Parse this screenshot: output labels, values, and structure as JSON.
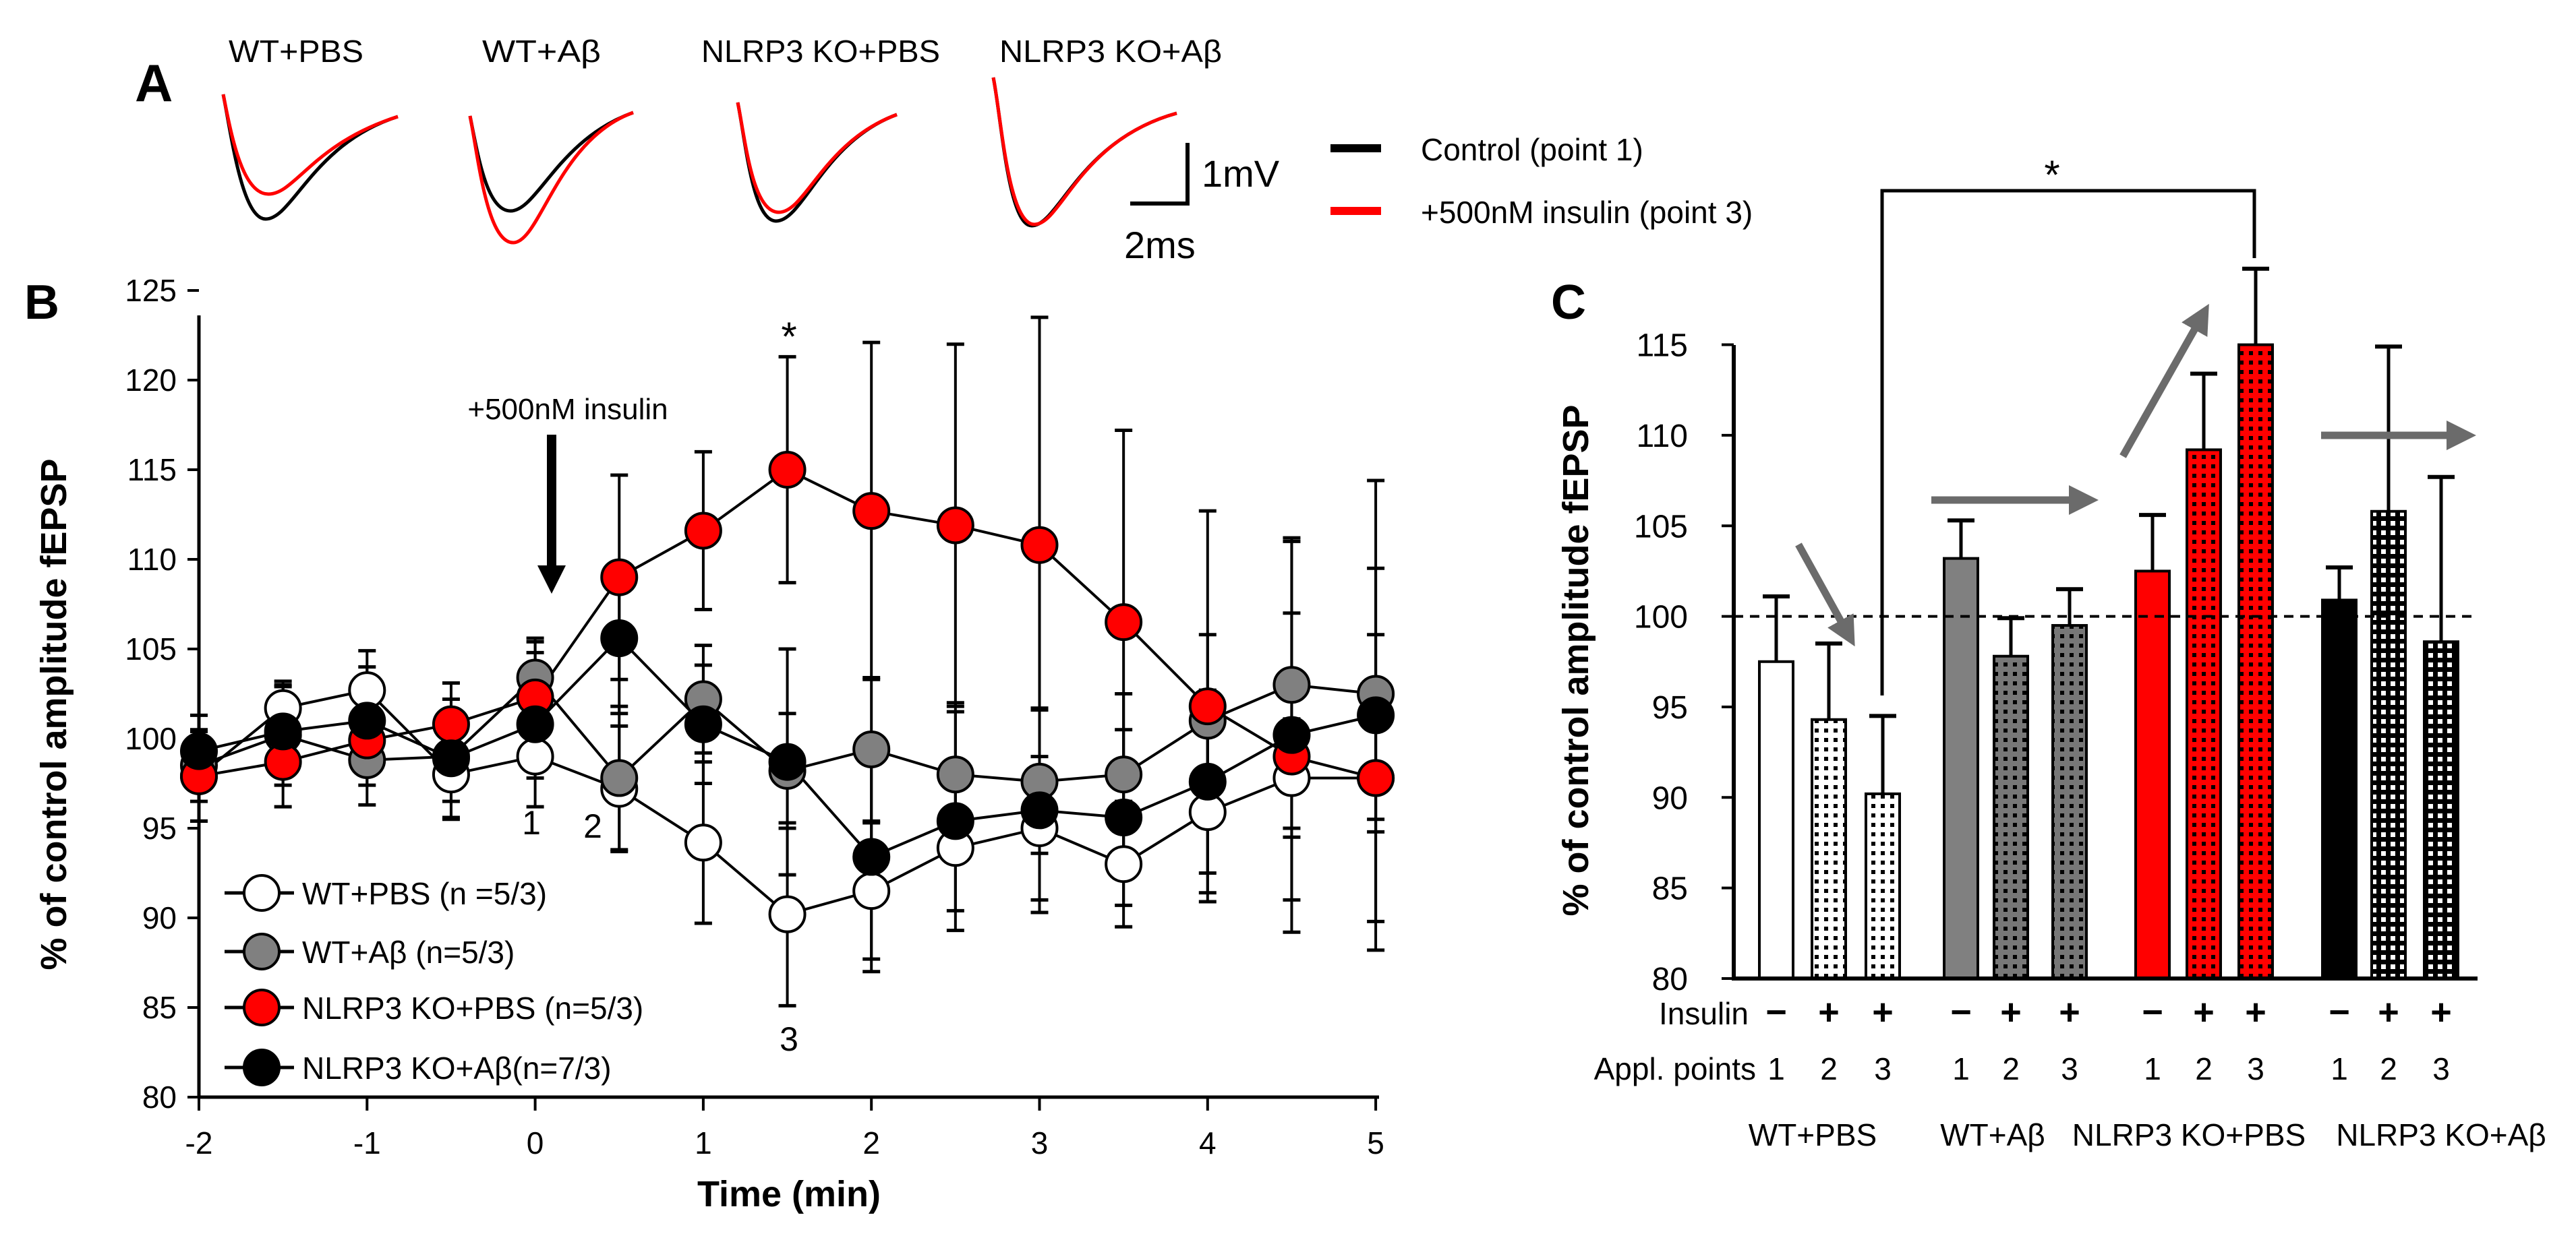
{
  "panel_labels": {
    "a": "A",
    "b": "B",
    "c": "C"
  },
  "panel_a": {
    "group_labels": [
      "WT+PBS",
      "WT+Aβ",
      "NLRP3 KO+PBS",
      "NLRP3 KO+Aβ"
    ],
    "scale_bar": {
      "voltage": "1mV",
      "time": "2ms"
    },
    "legend": [
      {
        "label": "Control (point 1)",
        "color": "#000000"
      },
      {
        "label": "+500nM insulin (point 3)",
        "color": "#ff0000"
      }
    ]
  },
  "chart_data": [
    {
      "type": "line",
      "panel": "B",
      "xlabel": "Time (min)",
      "ylabel": "% of control amplitude fEPSP",
      "xlim": [
        -2,
        5
      ],
      "ylim": [
        80,
        125
      ],
      "x_ticks": [
        "-2",
        "-1",
        "0",
        "1",
        "2",
        "3",
        "4",
        "5"
      ],
      "y_ticks": [
        "80",
        "85",
        "90",
        "95",
        "100",
        "105",
        "110",
        "115",
        "120",
        "125"
      ],
      "x": [
        -2,
        -1.5,
        -1,
        -0.5,
        0,
        0.5,
        1,
        1.5,
        2,
        2.5,
        3,
        3.5,
        4,
        4.5,
        5
      ],
      "annotations": {
        "drug": "+500nM insulin",
        "point1": "1",
        "point2": "2",
        "point3": "3",
        "significance": "*"
      },
      "legend_position": "bottom-left",
      "series": [
        {
          "name": "WT+PBS (n =5/3)",
          "color": "#ffffff",
          "values": [
            97.9,
            101.7,
            102.7,
            98.0,
            99.0,
            97.2,
            94.2,
            90.2,
            91.5,
            93.9,
            95.0,
            93.0,
            95.9,
            97.8,
            97.8
          ],
          "errors": [
            2.5,
            1.5,
            2.2,
            2.5,
            1.2,
            3.5,
            4.5,
            5.1,
            3.8,
            3.5,
            4.0,
            3.5,
            4.5,
            3.3,
            3.0
          ]
        },
        {
          "name": "WT+Aβ (n=5/3)",
          "color": "#808080",
          "values": [
            98.5,
            100.2,
            98.8,
            99.0,
            103.4,
            97.8,
            102.2,
            98.2,
            99.4,
            98.0,
            97.6,
            98.0,
            101.0,
            103.0,
            102.5
          ],
          "errors": [
            2.0,
            2.8,
            2.5,
            2.5,
            2.2,
            4.0,
            3.0,
            3.2,
            4.0,
            4.0,
            4.0,
            4.5,
            4.8,
            8.0,
            7.0
          ]
        },
        {
          "name": "NLRP3 KO+PBS (n=5/3)",
          "color": "#ff0000",
          "values": [
            97.9,
            98.7,
            99.9,
            100.8,
            102.3,
            109.0,
            111.6,
            115.0,
            112.7,
            111.9,
            110.8,
            106.5,
            101.8,
            99.0,
            97.8
          ],
          "errors": [
            2.5,
            2.5,
            2.5,
            2.3,
            2.5,
            5.7,
            4.4,
            6.3,
            9.4,
            10.1,
            12.7,
            10.7,
            10.9,
            8.0,
            8.0
          ]
        },
        {
          "name": "NLRP3 KO+Aβ(n=7/3)",
          "color": "#000000",
          "values": [
            99.3,
            100.4,
            101.0,
            98.9,
            100.8,
            105.6,
            100.8,
            98.7,
            93.4,
            95.4,
            96.0,
            95.6,
            97.6,
            100.2,
            101.3
          ],
          "errors": [
            2.0,
            2.5,
            3.0,
            3.3,
            4.6,
            4.2,
            3.3,
            6.3,
            6.4,
            6.1,
            5.7,
            4.9,
            5.1,
            11.0,
            13.1
          ]
        }
      ]
    },
    {
      "type": "bar",
      "panel": "C",
      "ylabel": "% of control amplitude fEPSP",
      "ylim": [
        80,
        115
      ],
      "y_ticks": [
        "80",
        "85",
        "90",
        "95",
        "100",
        "105",
        "110",
        "115"
      ],
      "reference_line": 100,
      "row_labels": {
        "insulin": "Insulin",
        "points": "Appl. points"
      },
      "significance": "*",
      "groups": [
        {
          "name": "WT+PBS",
          "color": "#ffffff",
          "insulin": [
            "−",
            "+",
            "+"
          ],
          "points": [
            "1",
            "2",
            "3"
          ],
          "values": [
            97.5,
            94.3,
            90.2
          ],
          "errors": [
            3.6,
            4.2,
            4.3
          ]
        },
        {
          "name": "WT+Aβ",
          "color": "#808080",
          "insulin": [
            "−",
            "+",
            "+"
          ],
          "points": [
            "1",
            "2",
            "3"
          ],
          "values": [
            103.2,
            97.8,
            99.5
          ],
          "errors": [
            2.1,
            2.1,
            2.0
          ]
        },
        {
          "name": "NLRP3 KO+PBS",
          "color": "#ff0000",
          "insulin": [
            "−",
            "+",
            "+"
          ],
          "points": [
            "1",
            "2",
            "3"
          ],
          "values": [
            102.5,
            109.2,
            115.0
          ],
          "errors": [
            3.1,
            4.2,
            4.2
          ]
        },
        {
          "name": "NLRP3 KO+Aβ",
          "color": "#000000",
          "insulin": [
            "−",
            "+",
            "+"
          ],
          "points": [
            "1",
            "2",
            "3"
          ],
          "values": [
            100.9,
            105.8,
            98.6
          ],
          "errors": [
            1.8,
            9.1,
            9.1
          ]
        }
      ]
    }
  ]
}
